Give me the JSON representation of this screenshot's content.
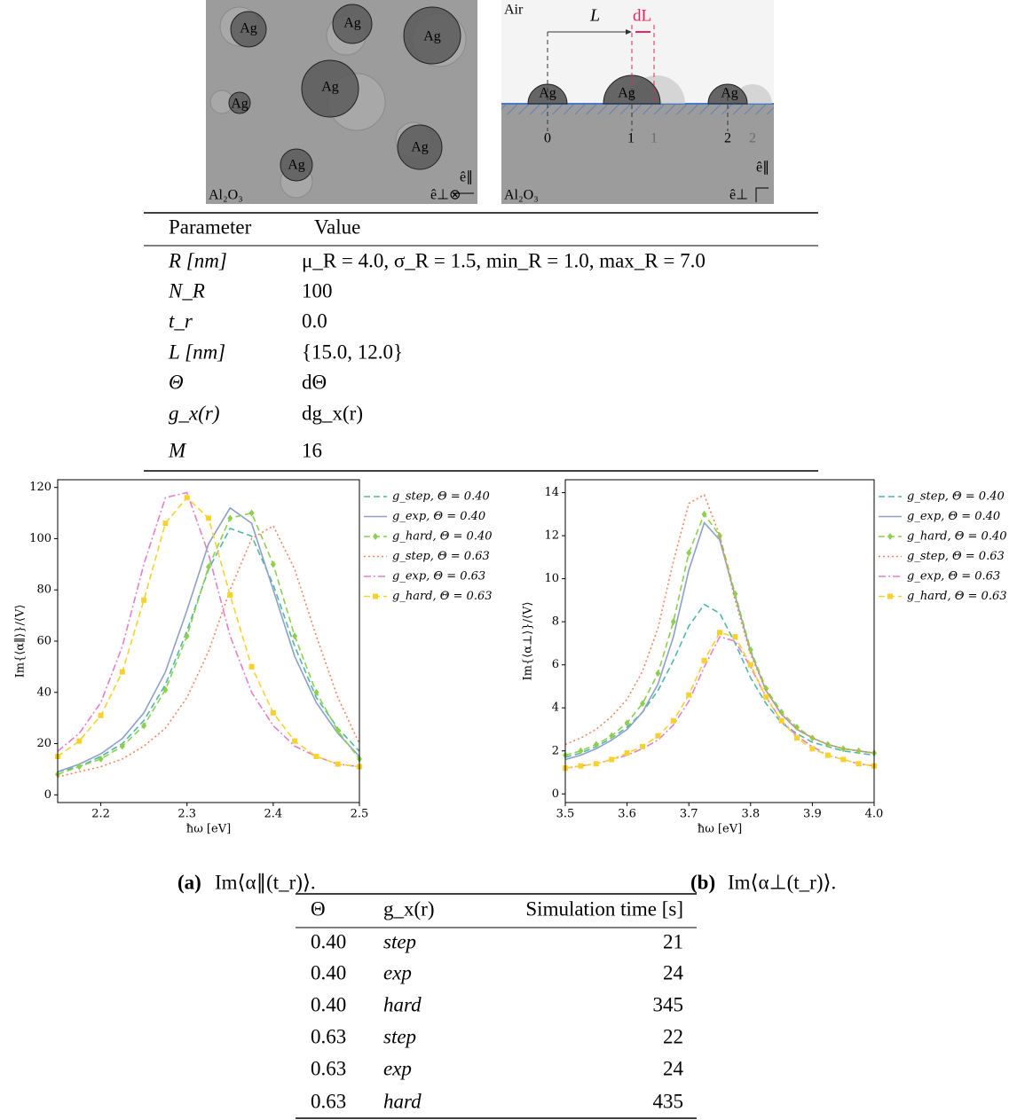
{
  "figure": {
    "left": {
      "ag_labels": [
        "Ag",
        "Ag",
        "Ag",
        "Ag",
        "Ag",
        "Ag",
        "Ag"
      ],
      "substrate": "Al₂O₃",
      "e_par": "ê∥",
      "e_perp": "ê⊥⊗"
    },
    "right": {
      "air": "Air",
      "L": "L",
      "dL": "dL",
      "ag_labels": [
        "Ag",
        "Ag",
        "Ag"
      ],
      "indices": [
        "0",
        "1",
        "1",
        "2",
        "2"
      ],
      "substrate": "Al₂O₃",
      "e_par": "ê∥",
      "e_perp": "ê⊥"
    }
  },
  "parameter_table": {
    "header": [
      "Parameter",
      "Value"
    ],
    "rows": [
      [
        "R   [nm]",
        "μ_R = 4.0, σ_R = 1.5, min_R = 1.0, max_R = 7.0"
      ],
      [
        "N_R",
        "100"
      ],
      [
        "t_r",
        "0.0"
      ],
      [
        "L   [nm]",
        "{15.0, 12.0}"
      ],
      [
        "Θ",
        "dΘ"
      ],
      [
        "g_x(r)",
        "dg_x(r)"
      ],
      [
        "M",
        "16"
      ]
    ]
  },
  "chart_data": [
    {
      "type": "line",
      "caption_label": "(a)",
      "caption": "Im⟨α∥(t_r)⟩.",
      "xlabel": "ħω [eV]",
      "ylabel": "Im{⟨α∥⟩}/⟨V⟩",
      "x": [
        2.15,
        2.175,
        2.2,
        2.225,
        2.25,
        2.275,
        2.3,
        2.325,
        2.35,
        2.375,
        2.4,
        2.425,
        2.45,
        2.475,
        2.5
      ],
      "xlim": [
        2.15,
        2.5
      ],
      "xticks": [
        2.2,
        2.3,
        2.4,
        2.5
      ],
      "ylim": [
        -3,
        123
      ],
      "yticks": [
        0,
        20,
        40,
        60,
        80,
        100,
        120
      ],
      "series": [
        {
          "name": "g_step, Θ = 0.40",
          "color": "#4fb8a6",
          "dash": "dashed",
          "marker": null,
          "values": [
            9,
            11,
            15,
            20,
            29,
            43,
            64,
            88,
            104,
            101,
            82,
            58,
            38,
            26,
            17
          ]
        },
        {
          "name": "g_exp, Θ = 0.40",
          "color": "#8da0cb",
          "dash": "solid",
          "marker": null,
          "values": [
            9,
            12,
            16,
            22,
            32,
            48,
            72,
            98,
            112,
            106,
            80,
            54,
            36,
            24,
            15
          ]
        },
        {
          "name": "g_hard, Θ = 0.40",
          "color": "#8cd04c",
          "dash": "dashed",
          "marker": "diamond",
          "values": [
            8,
            11,
            14,
            19,
            27,
            41,
            62,
            89,
            108,
            110,
            90,
            62,
            40,
            25,
            14
          ]
        },
        {
          "name": "g_step, Θ = 0.63",
          "color": "#f5845c",
          "dash": "dotted",
          "marker": null,
          "values": [
            7,
            9,
            11,
            14,
            19,
            26,
            38,
            56,
            80,
            100,
            105,
            88,
            62,
            38,
            20
          ]
        },
        {
          "name": "g_exp, Θ = 0.63",
          "color": "#e57fca",
          "dash": "dashdot",
          "marker": null,
          "values": [
            17,
            24,
            36,
            58,
            90,
            116,
            118,
            94,
            62,
            40,
            27,
            19,
            15,
            12,
            11
          ]
        },
        {
          "name": "g_hard, Θ = 0.63",
          "color": "#f7d22e",
          "dash": "dashed",
          "marker": "square",
          "values": [
            15,
            21,
            31,
            48,
            76,
            106,
            116,
            108,
            78,
            50,
            32,
            21,
            15,
            12,
            11
          ]
        }
      ]
    },
    {
      "type": "line",
      "caption_label": "(b)",
      "caption": "Im⟨α⊥(t_r)⟩.",
      "xlabel": "ħω [eV]",
      "ylabel": "Im{⟨α⊥⟩}/⟨V⟩",
      "x": [
        3.5,
        3.525,
        3.55,
        3.575,
        3.6,
        3.625,
        3.65,
        3.675,
        3.7,
        3.725,
        3.75,
        3.775,
        3.8,
        3.825,
        3.85,
        3.875,
        3.9,
        3.925,
        3.95,
        3.975,
        4.0
      ],
      "xlim": [
        3.5,
        4.0
      ],
      "xticks": [
        3.5,
        3.6,
        3.7,
        3.8,
        3.9,
        {
          "value": 4.0,
          "label": "4.0"
        }
      ],
      "ylim": [
        -0.4,
        14.6
      ],
      "yticks": [
        0,
        2,
        4,
        6,
        8,
        10,
        12,
        14
      ],
      "series": [
        {
          "name": "g_step, Θ = 0.40",
          "color": "#4fb8a6",
          "dash": "dashed",
          "marker": null,
          "values": [
            1.7,
            1.9,
            2.2,
            2.6,
            3.1,
            3.8,
            4.8,
            6.2,
            7.8,
            8.8,
            8.4,
            7.0,
            5.4,
            4.2,
            3.3,
            2.8,
            2.4,
            2.2,
            2.0,
            1.9,
            1.8
          ]
        },
        {
          "name": "g_exp, Θ = 0.40",
          "color": "#8da0cb",
          "dash": "solid",
          "marker": null,
          "values": [
            1.6,
            1.8,
            2.1,
            2.5,
            3.0,
            3.8,
            5.1,
            7.3,
            10.4,
            12.6,
            11.8,
            9.2,
            6.6,
            4.8,
            3.7,
            3.0,
            2.6,
            2.3,
            2.1,
            2.0,
            1.9
          ]
        },
        {
          "name": "g_hard, Θ = 0.40",
          "color": "#8cd04c",
          "dash": "dashed",
          "marker": "diamond",
          "values": [
            1.8,
            2.0,
            2.3,
            2.7,
            3.3,
            4.2,
            5.6,
            8.0,
            11.2,
            13.0,
            12.0,
            9.3,
            6.7,
            4.9,
            3.8,
            3.1,
            2.6,
            2.3,
            2.1,
            2.0,
            1.9
          ]
        },
        {
          "name": "g_step, Θ = 0.63",
          "color": "#f5845c",
          "dash": "dotted",
          "marker": null,
          "values": [
            2.3,
            2.6,
            3.0,
            3.6,
            4.4,
            5.7,
            7.7,
            10.8,
            13.5,
            13.9,
            12.0,
            9.0,
            6.5,
            4.8,
            3.7,
            3.0,
            2.6,
            2.3,
            2.1,
            2.0,
            1.9
          ]
        },
        {
          "name": "g_exp, Θ = 0.63",
          "color": "#e57fca",
          "dash": "dashdot",
          "marker": null,
          "values": [
            1.2,
            1.3,
            1.4,
            1.6,
            1.8,
            2.1,
            2.5,
            3.2,
            4.3,
            5.9,
            7.3,
            7.1,
            5.9,
            4.5,
            3.4,
            2.7,
            2.2,
            1.8,
            1.6,
            1.4,
            1.3
          ]
        },
        {
          "name": "g_hard, Θ = 0.63",
          "color": "#f7d22e",
          "dash": "dashed",
          "marker": "square",
          "values": [
            1.2,
            1.3,
            1.4,
            1.6,
            1.9,
            2.2,
            2.7,
            3.4,
            4.6,
            6.2,
            7.5,
            7.3,
            6.0,
            4.5,
            3.4,
            2.6,
            2.1,
            1.8,
            1.6,
            1.4,
            1.3
          ]
        }
      ]
    }
  ],
  "time_table": {
    "header": [
      "Θ",
      "g_x(r)",
      "Simulation time [s]"
    ],
    "rows": [
      [
        "0.40",
        "step",
        21
      ],
      [
        "0.40",
        "exp",
        24
      ],
      [
        "0.40",
        "hard",
        345
      ],
      [
        "0.63",
        "step",
        22
      ],
      [
        "0.63",
        "exp",
        24
      ],
      [
        "0.63",
        "hard",
        435
      ]
    ]
  }
}
